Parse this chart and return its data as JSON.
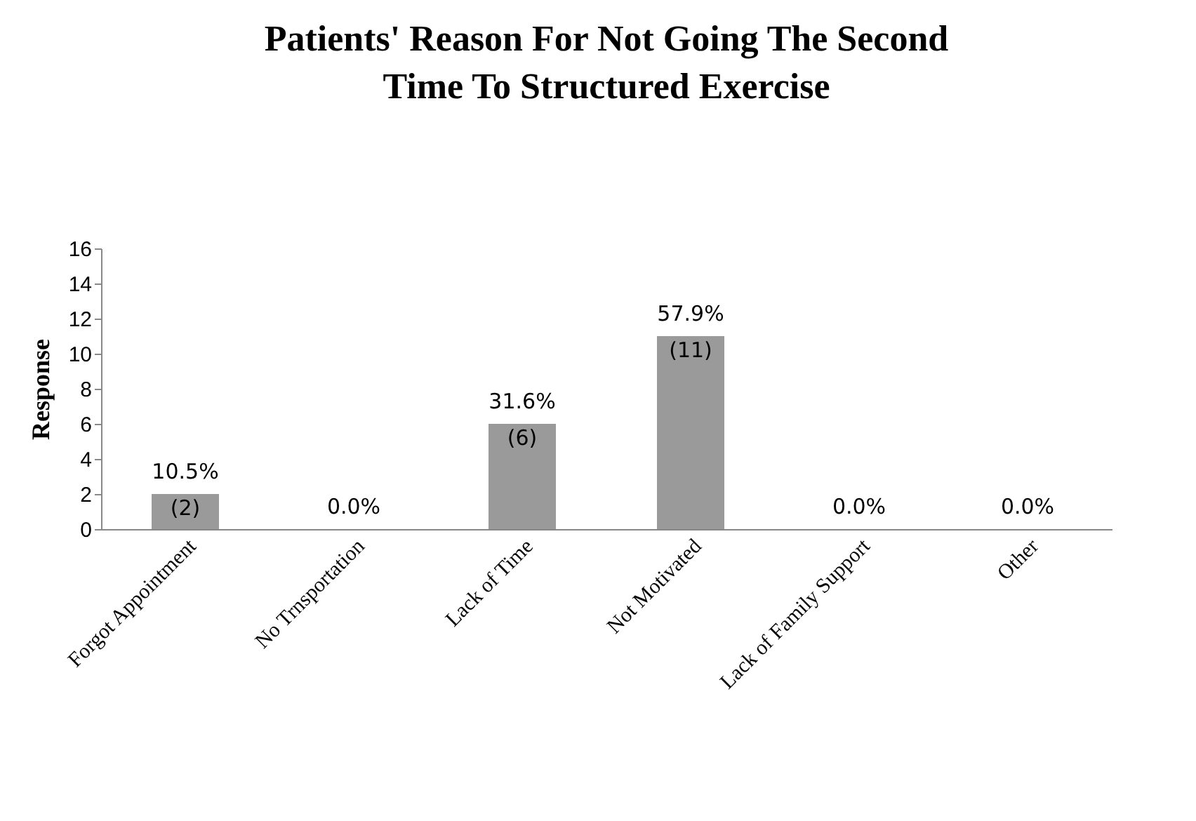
{
  "chart_data": {
    "type": "bar",
    "title": "Patients' Reason For Not Going The Second\nTime To Structured Exercise",
    "ylabel": "Response",
    "categories": [
      "Forgot Appointment",
      "No Trnsportation",
      "Lack of Time",
      "Not Motivated",
      "Lack of Family Support",
      "Other"
    ],
    "values": [
      2,
      0,
      6,
      11,
      0,
      0
    ],
    "color": "#9a9a9a",
    "value_labels": [
      "10.5%\n(2)",
      "0.0%",
      "31.6%\n(6)",
      "57.9%\n(11)",
      "0.0%",
      "0.0%"
    ],
    "ylim": [
      0,
      16
    ],
    "yticks": [
      0,
      2,
      4,
      6,
      8,
      10,
      12,
      14,
      16
    ],
    "grid": false
  }
}
